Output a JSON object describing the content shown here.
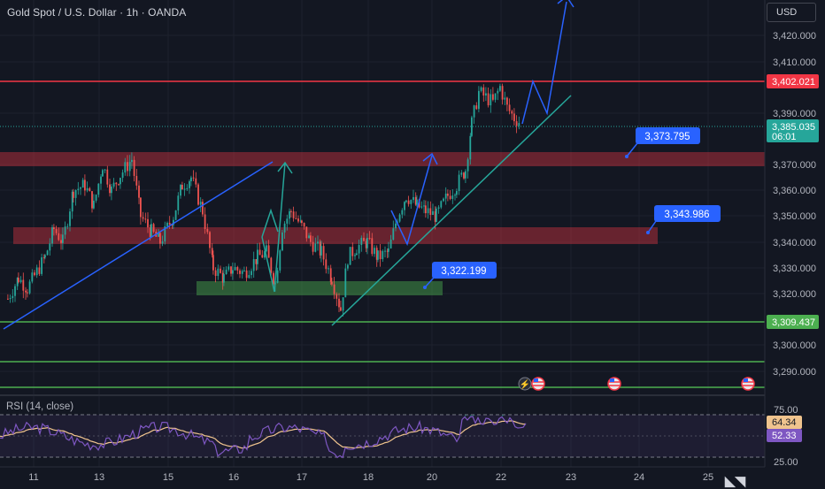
{
  "header": {
    "symbol_title": "Gold Spot / U.S. Dollar · 1h · OANDA",
    "currency": "USD"
  },
  "price_axis": {
    "ticks": [
      "3,420.000",
      "3,410.000",
      "3,390.000",
      "3,370.000",
      "3,360.000",
      "3,350.000",
      "3,340.000",
      "3,330.000",
      "3,320.000",
      "3,300.000",
      "3,290.000"
    ],
    "resistance_label": "3,402.021",
    "current_price": "3,385.035",
    "countdown": "06:01",
    "support_label": "3,309.437"
  },
  "callouts": {
    "top": "3,373.795",
    "middle": "3,343.986",
    "low": "3,322.199"
  },
  "rsi": {
    "title": "RSI (14, close)",
    "axis_top": "75.00",
    "axis_bottom": "25.00",
    "rsi_value": "64.34",
    "ma_value": "52.33"
  },
  "time_axis": {
    "labels": [
      "11",
      "13",
      "15",
      "16",
      "17",
      "18",
      "20",
      "22",
      "23",
      "24",
      "25"
    ]
  },
  "chart_data": {
    "type": "candlestick",
    "title": "Gold Spot / U.S. Dollar · 1h · OANDA",
    "y_range": [
      3286,
      3427
    ],
    "x_labels": [
      "11",
      "13",
      "15",
      "16",
      "17",
      "18",
      "20",
      "22",
      "23",
      "24",
      "25"
    ],
    "close_path": [
      [
        "11",
        3316
      ],
      [
        "12",
        3352
      ],
      [
        "13",
        3368
      ],
      [
        "14",
        3364
      ],
      [
        "15",
        3354
      ],
      [
        "16",
        3330
      ],
      [
        "16.5",
        3341
      ],
      [
        "17",
        3344
      ],
      [
        "17.5",
        3312
      ],
      [
        "18",
        3336
      ],
      [
        "19",
        3356
      ],
      [
        "20",
        3364
      ],
      [
        "21",
        3386
      ],
      [
        "21.5",
        3400
      ],
      [
        "22",
        3385
      ]
    ],
    "resistance_level": 3402.021,
    "support_level": 3309.437,
    "current_price": 3385.035,
    "zones": [
      [
        3368,
        3373
      ],
      [
        3339,
        3345
      ],
      [
        3319,
        3324
      ]
    ],
    "rsi_series": {
      "name": "RSI (14, close)",
      "latest": 64.34,
      "ma_latest": 52.33,
      "levels": [
        75,
        25
      ]
    },
    "colors": {
      "up": "#26a69a",
      "down": "#ef5350",
      "resistance": "#f23645",
      "support": "#4caf50",
      "callout": "#2962ff",
      "rsi": "#7e57c2",
      "rsi_ma": "#f0c48e"
    }
  }
}
